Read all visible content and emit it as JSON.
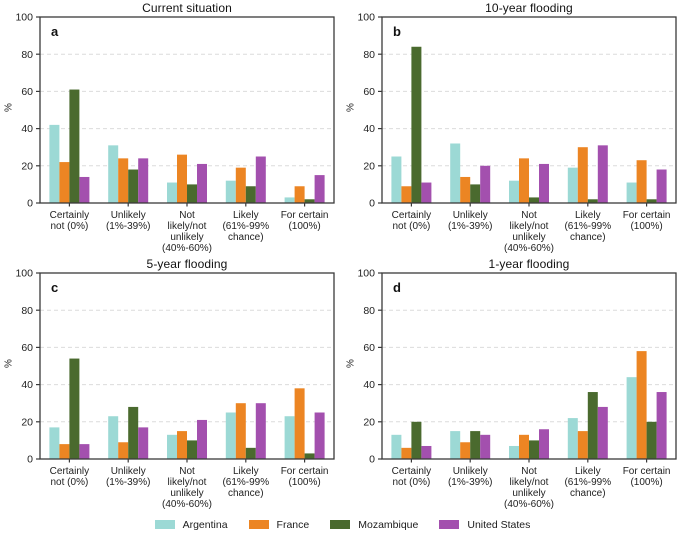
{
  "figure": {
    "ylabel": "%",
    "ylim": [
      0,
      100
    ],
    "yticks": [
      0,
      20,
      40,
      60,
      80,
      100
    ],
    "grid_on": true,
    "grid_color": "#dcdcdc",
    "axis_color": "#3a3a3a",
    "categories_wrapped": [
      [
        "Certainly",
        "not (0%)"
      ],
      [
        "Unlikely",
        "(1%-39%)"
      ],
      [
        "Not",
        "likely/not",
        "unlikely",
        "(40%-60%)"
      ],
      [
        "Likely",
        "(61%-99%",
        "chance)"
      ],
      [
        "For certain",
        "(100%)"
      ]
    ]
  },
  "legend": {
    "position": "bottom-center",
    "items": [
      {
        "label": "Argentina",
        "color": "#9cd9d5"
      },
      {
        "label": "France",
        "color": "#ec8523"
      },
      {
        "label": "Mozambique",
        "color": "#4a6a2e"
      },
      {
        "label": "United States",
        "color": "#a350ae"
      }
    ]
  },
  "chart_data": [
    {
      "type": "bar",
      "panel_label": "a",
      "title": "Current situation",
      "xlabel": "",
      "ylabel": "%",
      "ylim": [
        0,
        100
      ],
      "categories": [
        "Certainly not (0%)",
        "Unlikely (1%-39%)",
        "Not likely/not unlikely (40%-60%)",
        "Likely (61%-99% chance)",
        "For certain (100%)"
      ],
      "series": [
        {
          "name": "Argentina",
          "values": [
            42,
            31,
            11,
            12,
            3
          ]
        },
        {
          "name": "France",
          "values": [
            22,
            24,
            26,
            19,
            9
          ]
        },
        {
          "name": "Mozambique",
          "values": [
            61,
            18,
            10,
            9,
            2
          ]
        },
        {
          "name": "United States",
          "values": [
            14,
            24,
            21,
            25,
            15
          ]
        }
      ]
    },
    {
      "type": "bar",
      "panel_label": "b",
      "title": "10-year flooding",
      "xlabel": "",
      "ylabel": "%",
      "ylim": [
        0,
        100
      ],
      "categories": [
        "Certainly not (0%)",
        "Unlikely (1%-39%)",
        "Not likely/not unlikely (40%-60%)",
        "Likely (61%-99% chance)",
        "For certain (100%)"
      ],
      "series": [
        {
          "name": "Argentina",
          "values": [
            25,
            32,
            12,
            19,
            11
          ]
        },
        {
          "name": "France",
          "values": [
            9,
            14,
            24,
            30,
            23
          ]
        },
        {
          "name": "Mozambique",
          "values": [
            84,
            10,
            3,
            2,
            2
          ]
        },
        {
          "name": "United States",
          "values": [
            11,
            20,
            21,
            31,
            18
          ]
        }
      ]
    },
    {
      "type": "bar",
      "panel_label": "c",
      "title": "5-year flooding",
      "xlabel": "",
      "ylabel": "%",
      "ylim": [
        0,
        100
      ],
      "categories": [
        "Certainly not (0%)",
        "Unlikely (1%-39%)",
        "Not likely/not unlikely (40%-60%)",
        "Likely (61%-99% chance)",
        "For certain (100%)"
      ],
      "series": [
        {
          "name": "Argentina",
          "values": [
            17,
            23,
            13,
            25,
            23
          ]
        },
        {
          "name": "France",
          "values": [
            8,
            9,
            15,
            30,
            38
          ]
        },
        {
          "name": "Mozambique",
          "values": [
            54,
            28,
            10,
            6,
            3
          ]
        },
        {
          "name": "United States",
          "values": [
            8,
            17,
            21,
            30,
            25
          ]
        }
      ]
    },
    {
      "type": "bar",
      "panel_label": "d",
      "title": "1-year flooding",
      "xlabel": "",
      "ylabel": "%",
      "ylim": [
        0,
        100
      ],
      "categories": [
        "Certainly not (0%)",
        "Unlikely (1%-39%)",
        "Not likely/not unlikely (40%-60%)",
        "Likely (61%-99% chance)",
        "For certain (100%)"
      ],
      "series": [
        {
          "name": "Argentina",
          "values": [
            13,
            15,
            7,
            22,
            44
          ]
        },
        {
          "name": "France",
          "values": [
            6,
            9,
            13,
            15,
            58
          ]
        },
        {
          "name": "Mozambique",
          "values": [
            20,
            15,
            10,
            36,
            20
          ]
        },
        {
          "name": "United States",
          "values": [
            7,
            13,
            16,
            28,
            36
          ]
        }
      ]
    }
  ]
}
